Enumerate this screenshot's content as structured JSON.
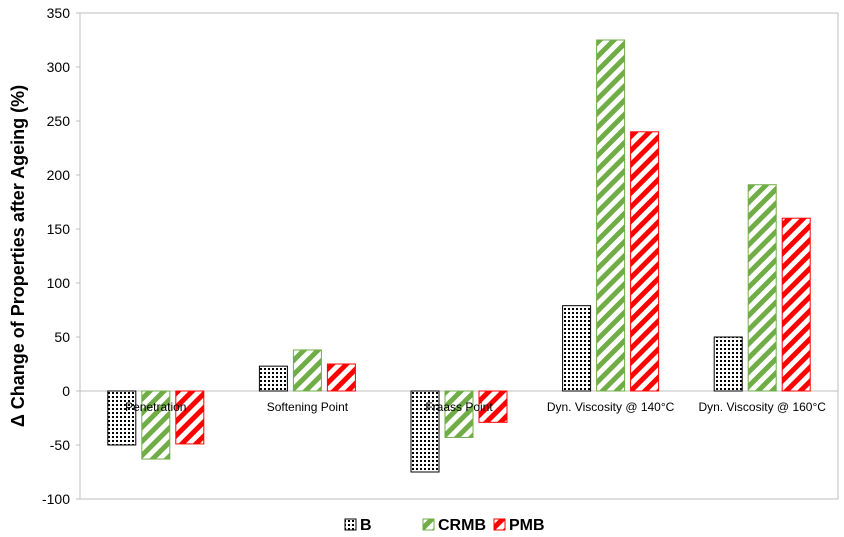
{
  "chart_data": {
    "type": "bar",
    "title": "",
    "xlabel": "",
    "ylabel": "Δ Change of Properties after Ageing (%)",
    "ylim": [
      -100,
      350
    ],
    "yticks": [
      -100,
      -50,
      0,
      50,
      100,
      150,
      200,
      250,
      300,
      350
    ],
    "categories": [
      "Penetration",
      "Softening Point",
      "Fraass Point",
      "Dyn. Viscosity @ 140°C",
      "Dyn. Viscosity @ 160°C"
    ],
    "series": [
      {
        "name": "B",
        "color": "#000000",
        "pattern": "dots",
        "values": [
          -50,
          23,
          -75,
          79,
          50
        ]
      },
      {
        "name": "CRMB",
        "color": "#70ad47",
        "pattern": "diagonal-stripes",
        "values": [
          -63,
          38,
          -43,
          325,
          191
        ]
      },
      {
        "name": "PMB",
        "color": "#ff0000",
        "pattern": "diagonal-stripes",
        "values": [
          -49,
          25,
          -29,
          240,
          160
        ]
      }
    ],
    "grid": false,
    "legend": "bottom"
  }
}
